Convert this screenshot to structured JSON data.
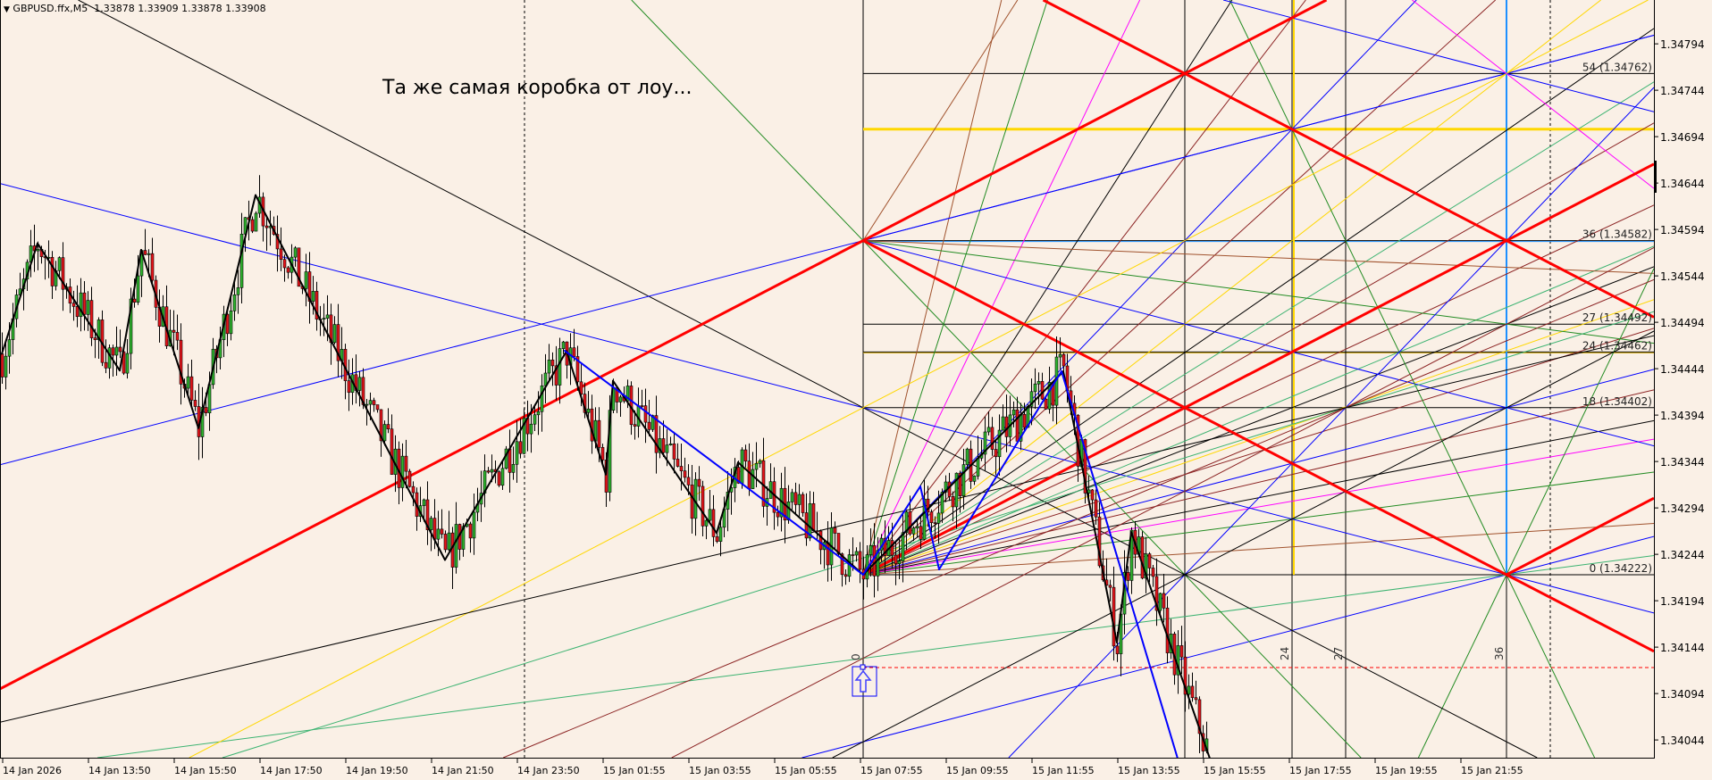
{
  "header": {
    "menu_icon": "triangle-down-icon",
    "menu_glyph": "▼",
    "symbol_info": "GBPUSD.ffx,M5",
    "ohlc": "1.33878 1.33909 1.33878 1.33908"
  },
  "annotation": "Та же самая коробка от лоу...",
  "chart_data": {
    "type": "candlestick",
    "symbol": "GBPUSD.ffx",
    "timeframe": "M5",
    "ylim": [
      1.34024,
      1.3485
    ],
    "grid": false,
    "price_axis": [
      "1.34794",
      "1.34744",
      "1.34694",
      "1.34644",
      "1.34594",
      "1.34544",
      "1.34494",
      "1.34444",
      "1.34394",
      "1.34344",
      "1.34294",
      "1.34244",
      "1.34194",
      "1.34144",
      "1.34094",
      "1.34044"
    ],
    "time_axis": [
      "14 Jan 2026",
      "14 Jan 13:50",
      "14 Jan 15:50",
      "14 Jan 17:50",
      "14 Jan 19:50",
      "14 Jan 21:50",
      "14 Jan 23:50",
      "15 Jan 01:55",
      "15 Jan 03:55",
      "15 Jan 05:55",
      "15 Jan 07:55",
      "15 Jan 09:55",
      "15 Jan 11:55",
      "15 Jan 13:55",
      "15 Jan 15:55",
      "15 Jan 17:55",
      "15 Jan 19:55",
      "15 Jan 21:55"
    ],
    "zigzag": [
      {
        "time": "14 Jan 11:50",
        "price": 1.3446
      },
      {
        "time": "14 Jan 12:40",
        "price": 1.34579
      },
      {
        "time": "14 Jan 14:35",
        "price": 1.34442
      },
      {
        "time": "14 Jan 15:05",
        "price": 1.34572
      },
      {
        "time": "14 Jan 16:25",
        "price": 1.3438
      },
      {
        "time": "14 Jan 17:45",
        "price": 1.34631
      },
      {
        "time": "14 Jan 22:10",
        "price": 1.34238
      },
      {
        "time": "15 Jan 01:00",
        "price": 1.34463
      },
      {
        "time": "15 Jan 01:55",
        "price": 1.3433
      },
      {
        "time": "15 Jan 02:05",
        "price": 1.34431
      },
      {
        "time": "15 Jan 04:30",
        "price": 1.34267
      },
      {
        "time": "15 Jan 05:00",
        "price": 1.34343
      },
      {
        "time": "15 Jan 07:55",
        "price": 1.34222
      },
      {
        "time": "15 Jan 12:35",
        "price": 1.34441
      },
      {
        "time": "15 Jan 13:50",
        "price": 1.34149
      },
      {
        "time": "15 Jan 14:10",
        "price": 1.34268
      },
      {
        "time": "15 Jan 16:00",
        "price": 1.34024
      }
    ],
    "gann_box": {
      "origin_time": "15 Jan 07:55",
      "origin_price": 1.34222,
      "price_levels": [
        {
          "n": 0,
          "label": "0 (1.34222)",
          "price": 1.34222
        },
        {
          "n": 18,
          "label": "18 (1.34402)",
          "price": 1.34402
        },
        {
          "n": 24,
          "label": "24 (1.34462)",
          "price": 1.34462
        },
        {
          "n": 27,
          "label": "27 (1.34492)",
          "price": 1.34492
        },
        {
          "n": 36,
          "label": "36 (1.34582)",
          "price": 1.34582
        },
        {
          "n": 54,
          "label": "54 (1.34762)",
          "price": 1.34762
        }
      ],
      "time_labels": [
        "0",
        "24",
        "27",
        "36"
      ]
    },
    "reference_line_price": 1.34122,
    "colors": {
      "bull": "#2fb52f",
      "bear": "#e8141b",
      "background": "#faf0e6",
      "gann_main": "#ff0000",
      "level_highlight": "#ffd700",
      "time_36": "#1e90ff"
    }
  }
}
